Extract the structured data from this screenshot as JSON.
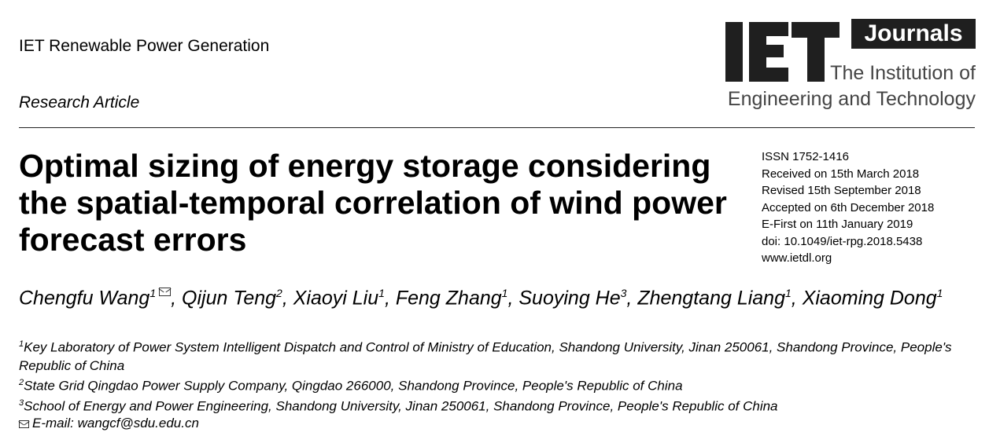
{
  "header": {
    "journal_name": "IET Renewable Power Generation",
    "article_type": "Research Article"
  },
  "logo": {
    "wordmark": "IET",
    "journals_label": "Journals",
    "institution_line1": "The Institution of",
    "institution_line2": "Engineering and Technology"
  },
  "title": "Optimal sizing of energy storage considering the spatial-temporal correlation of wind power forecast errors",
  "meta": {
    "issn": "ISSN 1752-1416",
    "received": "Received on 15th March 2018",
    "revised": "Revised 15th September 2018",
    "accepted": "Accepted on 6th December 2018",
    "efirst": "E-First on 11th January 2019",
    "doi": "doi: 10.1049/iet-rpg.2018.5438",
    "url": "www.ietdl.org"
  },
  "authors": [
    {
      "name": "Chengfu Wang",
      "sup": "1"
    },
    {
      "name": "Qijun Teng",
      "sup": "2"
    },
    {
      "name": "Xiaoyi Liu",
      "sup": "1"
    },
    {
      "name": "Feng Zhang",
      "sup": "1"
    },
    {
      "name": "Suoying He",
      "sup": "3"
    },
    {
      "name": "Zhengtang Liang",
      "sup": "1"
    },
    {
      "name": "Xiaoming Dong",
      "sup": "1"
    }
  ],
  "affiliations": [
    {
      "sup": "1",
      "text": "Key Laboratory of Power System Intelligent Dispatch and Control of Ministry of Education, Shandong University, Jinan 250061, Shandong Province, People's Republic of China"
    },
    {
      "sup": "2",
      "text": "State Grid Qingdao Power Supply Company, Qingdao 266000, Shandong Province, People's Republic of China"
    },
    {
      "sup": "3",
      "text": "School of Energy and Power Engineering, Shandong University, Jinan 250061, Shandong Province, People's Republic of China"
    }
  ],
  "email": "E-mail: wangcf@sdu.edu.cn",
  "icons": {
    "corresponding": "envelope-icon"
  }
}
